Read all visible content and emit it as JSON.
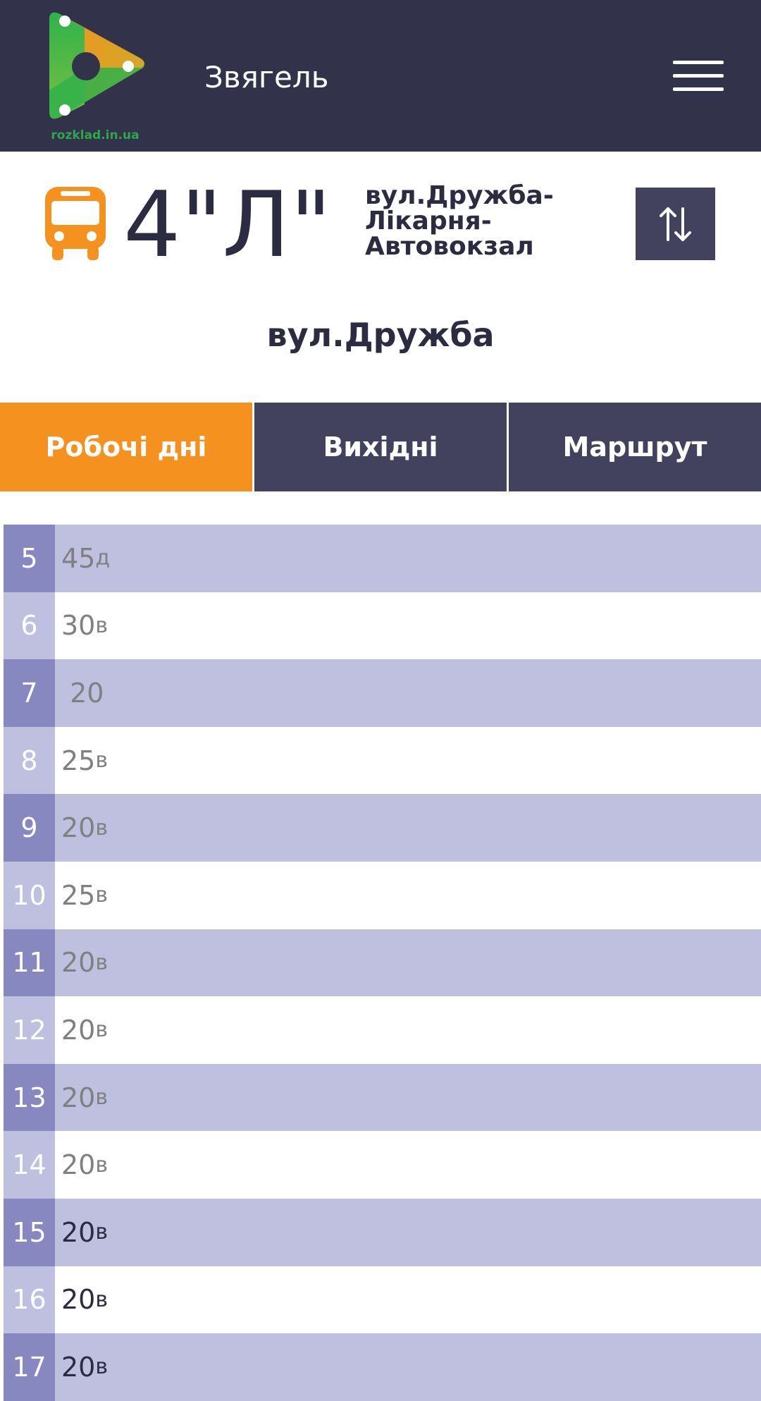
{
  "header": {
    "logo_text": "rozklad.in.ua",
    "city": "Звягель",
    "colors": {
      "background": "#32324a",
      "logo_green": "#2aa84a",
      "logo_orange": "#f5911e"
    }
  },
  "route": {
    "number": "4\"Л\"",
    "name_lines": [
      "вул.Дружба-",
      "Лікарня-",
      "Автовокзал"
    ],
    "icon": "bus-icon",
    "icon_color": "#f5911e",
    "swap_icon": "swap-arrows-icon"
  },
  "stop": {
    "title": "вул.Дружба"
  },
  "tabs": [
    {
      "label": "Робочі дні",
      "active": true
    },
    {
      "label": "Вихідні",
      "active": false
    },
    {
      "label": "Маршрут",
      "active": false
    }
  ],
  "schedule": [
    {
      "hour": "5",
      "minutes": "45",
      "suffix": "д",
      "passed": true
    },
    {
      "hour": "6",
      "minutes": "30",
      "suffix": "в",
      "passed": true
    },
    {
      "hour": "7",
      "minutes": " 20",
      "suffix": "",
      "passed": true
    },
    {
      "hour": "8",
      "minutes": "25",
      "suffix": "в",
      "passed": true
    },
    {
      "hour": "9",
      "minutes": "20",
      "suffix": "в",
      "passed": true
    },
    {
      "hour": "10",
      "minutes": "25",
      "suffix": "в",
      "passed": true
    },
    {
      "hour": "11",
      "minutes": "20",
      "suffix": "в",
      "passed": true
    },
    {
      "hour": "12",
      "minutes": "20",
      "suffix": "в",
      "passed": true
    },
    {
      "hour": "13",
      "minutes": "20",
      "suffix": "в",
      "passed": true
    },
    {
      "hour": "14",
      "minutes": "20",
      "suffix": "в",
      "passed": true
    },
    {
      "hour": "15",
      "minutes": "20",
      "suffix": "в",
      "passed": false
    },
    {
      "hour": "16",
      "minutes": "20",
      "suffix": "в",
      "passed": false
    },
    {
      "hour": "17",
      "minutes": "20",
      "suffix": "в",
      "passed": false
    }
  ]
}
